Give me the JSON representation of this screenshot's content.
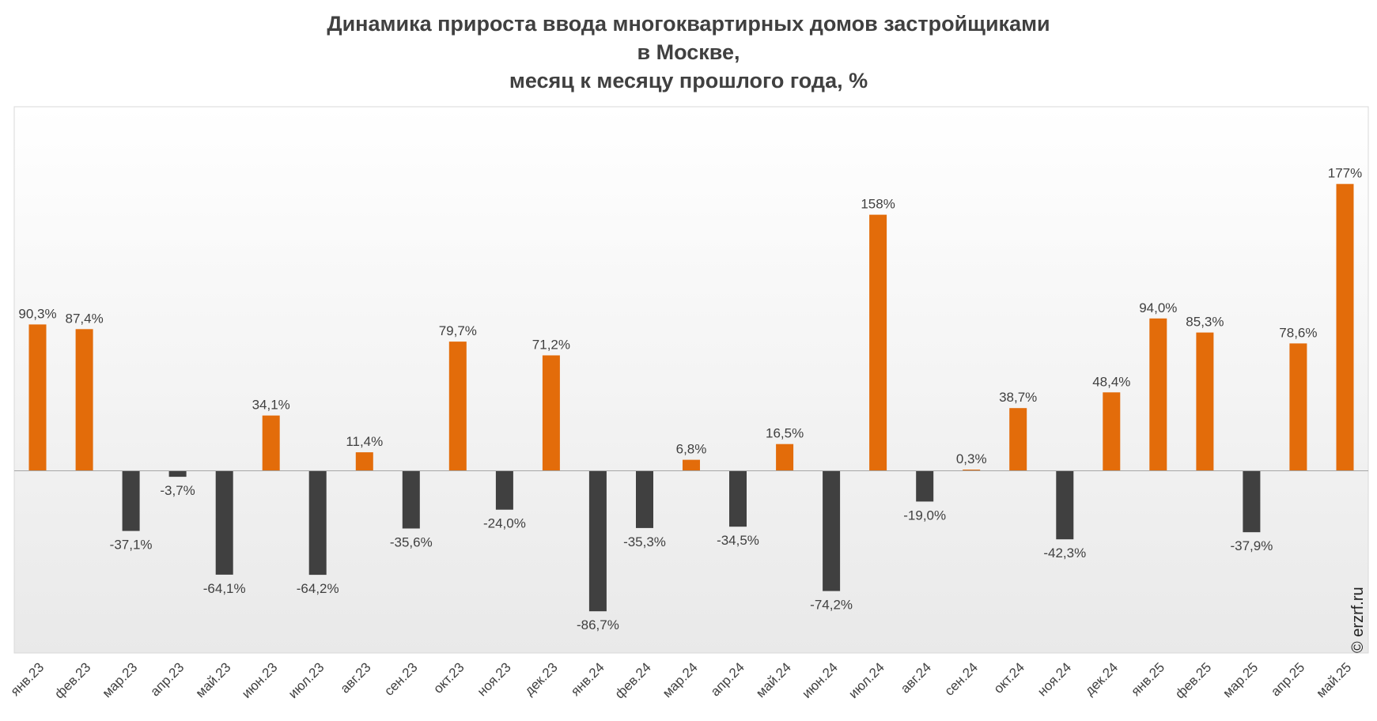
{
  "chart_data": {
    "type": "bar",
    "title_lines": [
      "Динамика прироста ввода многоквартирных домов застройщиками",
      "в Москве,",
      "месяц к месяцу прошлого года, %"
    ],
    "categories": [
      "янв.23",
      "фев.23",
      "мар.23",
      "апр.23",
      "май.23",
      "июн.23",
      "июл.23",
      "авг.23",
      "сен.23",
      "окт.23",
      "ноя.23",
      "дек.23",
      "янв.24",
      "фев.24",
      "мар.24",
      "апр.24",
      "май.24",
      "июн.24",
      "июл.24",
      "авг.24",
      "сен.24",
      "окт.24",
      "ноя.24",
      "дек.24",
      "янв.25",
      "фев.25",
      "мар.25",
      "апр.25",
      "май.25"
    ],
    "values": [
      90.3,
      87.4,
      -37.1,
      -3.7,
      -64.1,
      34.1,
      -64.2,
      11.4,
      -35.6,
      79.7,
      -24.0,
      71.2,
      -86.7,
      -35.3,
      6.8,
      -34.5,
      16.5,
      -74.2,
      158,
      -19.0,
      0.3,
      38.7,
      -42.3,
      48.4,
      94.0,
      85.3,
      -37.9,
      78.6,
      177
    ],
    "labels": [
      "90,3%",
      "87,4%",
      "-37,1%",
      "-3,7%",
      "-64,1%",
      "34,1%",
      "-64,2%",
      "11,4%",
      "-35,6%",
      "79,7%",
      "-24,0%",
      "71,2%",
      "-86,7%",
      "-35,3%",
      "6,8%",
      "-34,5%",
      "16,5%",
      "-74,2%",
      "158%",
      "-19,0%",
      "0,3%",
      "38,7%",
      "-42,3%",
      "48,4%",
      "94,0%",
      "85,3%",
      "-37,9%",
      "78,6%",
      "177%"
    ],
    "xlabel": "",
    "ylabel": "",
    "ylim": [
      -100,
      200
    ],
    "grid": false,
    "legend": "none",
    "colors": {
      "positive": "#E36C0A",
      "negative": "#404040",
      "label": "#404040",
      "title": "#404040"
    }
  },
  "watermark": "© erzrf.ru"
}
